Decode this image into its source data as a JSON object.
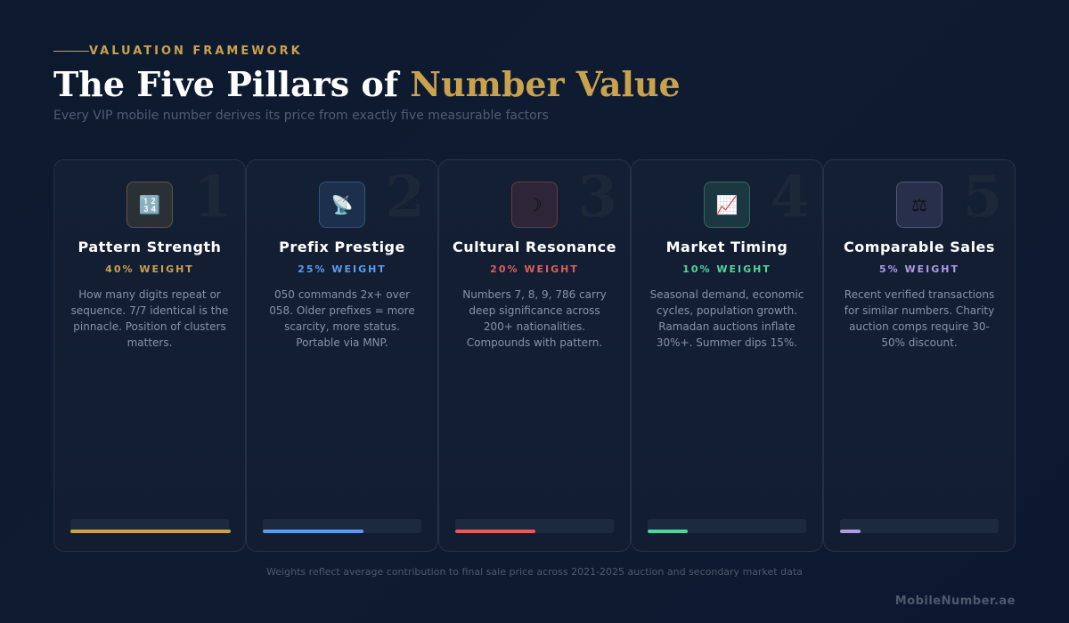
{
  "header": {
    "eyebrow": "VALUATION FRAMEWORK",
    "title_main": "The Five Pillars of ",
    "title_accent": "Number Value",
    "subtitle": "Every VIP mobile number derives its price from exactly five measurable factors"
  },
  "pillars": [
    {
      "number": "1",
      "icon": "abacus-numbers-icon",
      "icon_glyph": "🔢",
      "name": "Pattern Strength",
      "weight_label": "40% WEIGHT",
      "weight": 0.4,
      "color": "#c9a24e",
      "description": "How many digits repeat or sequence. 7/7 identical is the pinnacle. Position of clusters matters."
    },
    {
      "number": "2",
      "icon": "satellite-dish-icon",
      "icon_glyph": "📡",
      "name": "Prefix Prestige",
      "weight_label": "25% WEIGHT",
      "weight": 0.25,
      "color": "#5b9bef",
      "description": "050 commands 2x+ over 058. Older prefixes = more scarcity, more status. Portable via MNP."
    },
    {
      "number": "3",
      "icon": "crescent-moon-icon",
      "icon_glyph": "☽",
      "name": "Cultural Resonance",
      "weight_label": "20% WEIGHT",
      "weight": 0.2,
      "color": "#e05d5d",
      "description": "Numbers 7, 8, 9, 786 carry deep significance across 200+ nationalities. Compounds with pattern."
    },
    {
      "number": "4",
      "icon": "line-chart-icon",
      "icon_glyph": "📈",
      "name": "Market Timing",
      "weight_label": "10% WEIGHT",
      "weight": 0.1,
      "color": "#4fd69c",
      "description": "Seasonal demand, economic cycles, population growth. Ramadan auctions inflate 30%+. Summer dips 15%."
    },
    {
      "number": "5",
      "icon": "balance-scale-icon",
      "icon_glyph": "⚖",
      "name": "Comparable Sales",
      "weight_label": "5% WEIGHT",
      "weight": 0.05,
      "color": "#b09ae8",
      "description": "Recent verified transactions for similar numbers. Charity auction comps require 30-50% discount."
    }
  ],
  "footnote": "Weights reflect average contribution to final sale price across 2021-2025 auction and secondary market data",
  "brand": "MobileNumber.ae"
}
